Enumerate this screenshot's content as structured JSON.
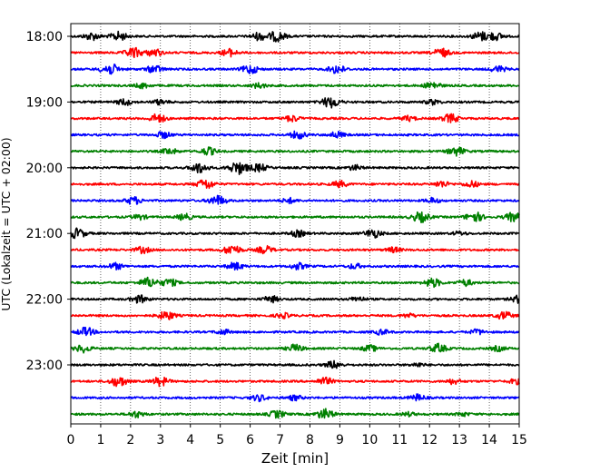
{
  "chart_data": {
    "type": "line",
    "title": "",
    "xlabel": "Zeit  [min]",
    "ylabel": "UTC (Lokalzeit = UTC + 02:00)",
    "xlim": [
      0,
      15
    ],
    "x_ticks": [
      "0",
      "1",
      "2",
      "3",
      "4",
      "5",
      "6",
      "7",
      "8",
      "9",
      "10",
      "11",
      "12",
      "13",
      "14",
      "15"
    ],
    "y_ticks": [
      "18:00",
      "19:00",
      "20:00",
      "21:00",
      "22:00",
      "23:00"
    ],
    "grid": {
      "vertical_dotted": true,
      "horizontal": false
    },
    "colors": [
      "#000000",
      "#ff0000",
      "#0000ff",
      "#008000"
    ],
    "row_interval_min": 15,
    "traces": [
      {
        "start": "18:00",
        "color": "#000000",
        "bursts": [
          [
            0.7,
            0.6
          ],
          [
            1.6,
            0.7
          ],
          [
            6.3,
            0.6
          ],
          [
            6.9,
            0.8
          ],
          [
            13.7,
            0.7
          ],
          [
            14.2,
            0.6
          ]
        ]
      },
      {
        "start": "18:15",
        "color": "#ff0000",
        "bursts": [
          [
            2.1,
            0.8
          ],
          [
            2.8,
            0.6
          ],
          [
            5.3,
            0.6
          ],
          [
            12.4,
            0.7
          ]
        ]
      },
      {
        "start": "18:30",
        "color": "#0000ff",
        "bursts": [
          [
            1.3,
            0.9
          ],
          [
            2.8,
            0.6
          ],
          [
            6.0,
            0.7
          ],
          [
            8.9,
            0.7
          ],
          [
            14.3,
            0.5
          ]
        ]
      },
      {
        "start": "18:45",
        "color": "#008000",
        "bursts": [
          [
            2.4,
            0.4
          ],
          [
            6.3,
            0.4
          ],
          [
            12.1,
            0.6
          ]
        ]
      },
      {
        "start": "19:00",
        "color": "#000000",
        "bursts": [
          [
            1.8,
            0.5
          ],
          [
            3.0,
            0.4
          ],
          [
            8.7,
            0.9
          ],
          [
            12.1,
            0.4
          ]
        ]
      },
      {
        "start": "19:15",
        "color": "#ff0000",
        "bursts": [
          [
            2.9,
            0.7
          ],
          [
            7.4,
            0.5
          ],
          [
            11.3,
            0.4
          ],
          [
            12.7,
            0.7
          ]
        ]
      },
      {
        "start": "19:30",
        "color": "#0000ff",
        "bursts": [
          [
            3.1,
            0.5
          ],
          [
            7.6,
            0.6
          ],
          [
            8.9,
            0.5
          ]
        ]
      },
      {
        "start": "19:45",
        "color": "#008000",
        "bursts": [
          [
            3.3,
            0.5
          ],
          [
            4.6,
            0.6
          ],
          [
            12.9,
            0.7
          ]
        ]
      },
      {
        "start": "20:00",
        "color": "#000000",
        "bursts": [
          [
            4.3,
            0.8
          ],
          [
            5.6,
            1.0
          ],
          [
            6.3,
            0.6
          ],
          [
            9.5,
            0.4
          ]
        ]
      },
      {
        "start": "20:15",
        "color": "#ff0000",
        "bursts": [
          [
            4.5,
            0.8
          ],
          [
            9.0,
            0.5
          ],
          [
            12.4,
            0.5
          ],
          [
            13.4,
            0.5
          ]
        ]
      },
      {
        "start": "20:30",
        "color": "#0000ff",
        "bursts": [
          [
            2.1,
            0.6
          ],
          [
            4.9,
            0.8
          ],
          [
            7.3,
            0.4
          ],
          [
            12.1,
            0.4
          ]
        ]
      },
      {
        "start": "20:45",
        "color": "#008000",
        "bursts": [
          [
            2.3,
            0.4
          ],
          [
            3.8,
            0.5
          ],
          [
            11.7,
            0.8
          ],
          [
            13.5,
            0.8
          ],
          [
            14.8,
            0.7
          ]
        ]
      },
      {
        "start": "21:00",
        "color": "#000000",
        "bursts": [
          [
            0.2,
            0.8
          ],
          [
            7.6,
            0.5
          ],
          [
            10.1,
            0.7
          ],
          [
            13.0,
            0.3
          ]
        ]
      },
      {
        "start": "21:15",
        "color": "#ff0000",
        "bursts": [
          [
            2.4,
            0.5
          ],
          [
            5.4,
            0.8
          ],
          [
            6.5,
            0.6
          ],
          [
            10.8,
            0.4
          ]
        ]
      },
      {
        "start": "21:30",
        "color": "#0000ff",
        "bursts": [
          [
            1.5,
            0.5
          ],
          [
            5.5,
            0.6
          ],
          [
            7.6,
            0.5
          ],
          [
            9.5,
            0.4
          ]
        ]
      },
      {
        "start": "21:45",
        "color": "#008000",
        "bursts": [
          [
            2.6,
            0.8
          ],
          [
            3.3,
            0.6
          ],
          [
            12.1,
            0.7
          ],
          [
            13.2,
            0.5
          ]
        ]
      },
      {
        "start": "22:00",
        "color": "#000000",
        "bursts": [
          [
            2.3,
            0.6
          ],
          [
            6.7,
            0.5
          ],
          [
            9.6,
            0.4
          ],
          [
            15.0,
            0.6
          ]
        ]
      },
      {
        "start": "22:15",
        "color": "#ff0000",
        "bursts": [
          [
            3.2,
            0.7
          ],
          [
            7.1,
            0.4
          ],
          [
            11.3,
            0.3
          ],
          [
            14.5,
            0.6
          ]
        ]
      },
      {
        "start": "22:30",
        "color": "#0000ff",
        "bursts": [
          [
            0.5,
            0.7
          ],
          [
            5.1,
            0.4
          ],
          [
            10.4,
            0.4
          ],
          [
            13.6,
            0.4
          ]
        ]
      },
      {
        "start": "22:45",
        "color": "#008000",
        "bursts": [
          [
            0.4,
            0.6
          ],
          [
            7.5,
            0.6
          ],
          [
            10.0,
            0.5
          ],
          [
            12.3,
            0.7
          ],
          [
            14.3,
            0.4
          ]
        ]
      },
      {
        "start": "23:00",
        "color": "#000000",
        "bursts": [
          [
            8.8,
            0.6
          ],
          [
            11.6,
            0.3
          ]
        ]
      },
      {
        "start": "23:15",
        "color": "#ff0000",
        "bursts": [
          [
            1.6,
            0.8
          ],
          [
            3.0,
            0.7
          ],
          [
            8.5,
            0.6
          ],
          [
            12.8,
            0.4
          ],
          [
            14.9,
            0.4
          ]
        ]
      },
      {
        "start": "23:30",
        "color": "#0000ff",
        "bursts": [
          [
            6.3,
            0.5
          ],
          [
            7.5,
            0.4
          ],
          [
            11.6,
            0.5
          ]
        ]
      },
      {
        "start": "23:45",
        "color": "#008000",
        "bursts": [
          [
            2.2,
            0.5
          ],
          [
            6.9,
            0.6
          ],
          [
            8.5,
            0.8
          ],
          [
            11.3,
            0.3
          ],
          [
            13.1,
            0.3
          ]
        ]
      }
    ]
  }
}
